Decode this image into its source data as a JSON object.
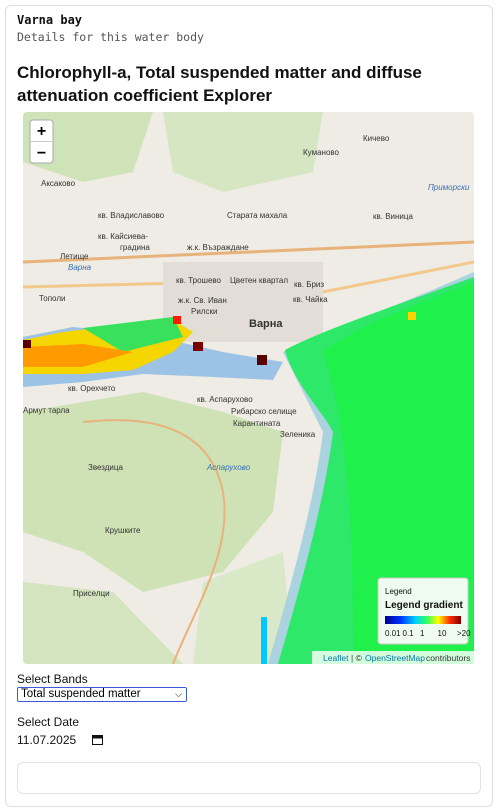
{
  "header": {
    "title": "Varna bay",
    "subtitle": "Details for this water body"
  },
  "heading": "Chlorophyll-a, Total suspended matter and diffuse attenuation coefficient Explorer",
  "map": {
    "zoom_in": "+",
    "zoom_out": "−",
    "place_labels": [
      "Куманово",
      "Кичево",
      "Аксаково",
      "Приморски",
      "кв. Владиславово",
      "Старата махала",
      "кв. Виница",
      "кв. Кайсиева-",
      "градина",
      "ж.к. Възраждане",
      "Летище",
      "Варна",
      "Тополи",
      "кв. Трошево",
      "Цветен квартал",
      "кв. Бриз",
      "ж.к. Св. Иван",
      "Рилски",
      "кв. Чайка",
      "Варна",
      "кв. Орехчето",
      "Армут тарла",
      "кв. Аспарухово",
      "Рибарско селище",
      "Карантината",
      "Зеленика",
      "Звездица",
      "Аспарухово",
      "Крушките",
      "Приселци"
    ],
    "legend": {
      "title": "Legend",
      "gradient_title": "Legend gradient",
      "ticks": [
        "0.01",
        "0.1",
        "1",
        "10",
        ">20"
      ]
    },
    "attribution": {
      "leaflet": "Leaflet",
      "separator": "| ©",
      "osm": "OpenStreetMap",
      "rest": "contributors"
    }
  },
  "controls": {
    "bands_label": "Select Bands",
    "bands_selected": "Total suspended matter",
    "date_label": "Select Date",
    "date_value": "11.07.2025"
  }
}
